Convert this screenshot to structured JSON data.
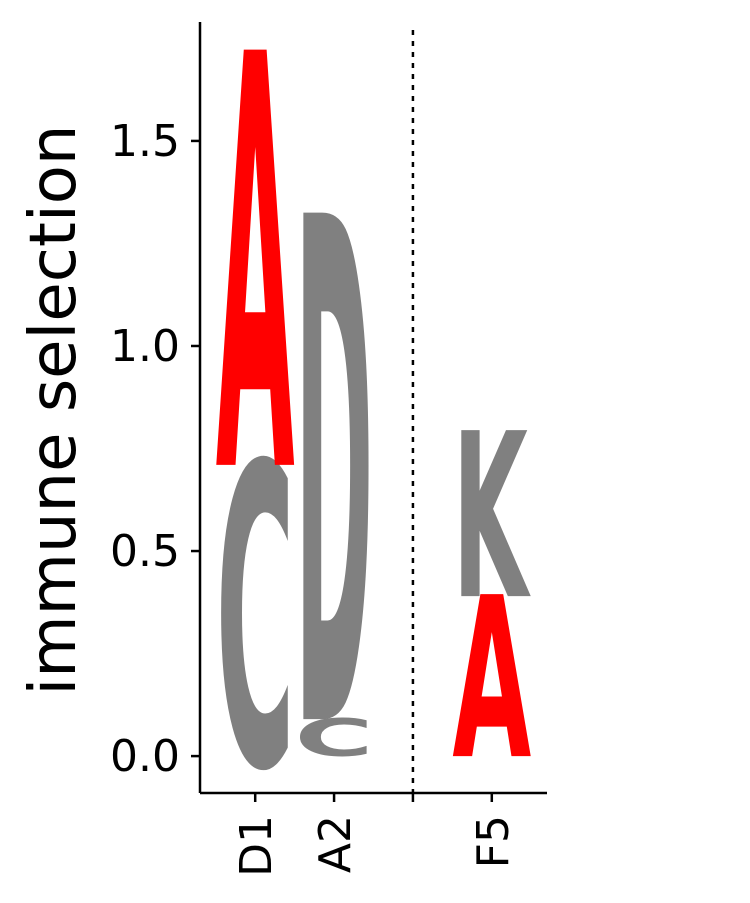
{
  "chart_data": {
    "type": "sequence-logo",
    "ylabel": "immune selection",
    "ylim": [
      -0.09,
      1.79
    ],
    "yticks": [
      {
        "value": 0.0,
        "label": "0.0"
      },
      {
        "value": 0.5,
        "label": "0.5"
      },
      {
        "value": 1.0,
        "label": "1.0"
      },
      {
        "value": 1.5,
        "label": "1.5"
      }
    ],
    "categories": [
      "D1",
      "A2",
      "F5"
    ],
    "category_positions": [
      1,
      2,
      4
    ],
    "xlim": [
      0.3,
      4.7
    ],
    "separator_at": 3,
    "stacks": [
      {
        "position": "D1",
        "letters": [
          {
            "char": "C",
            "bottom": -0.02,
            "top": 0.71,
            "color": "#808080"
          },
          {
            "char": "A",
            "bottom": 0.71,
            "top": 1.71,
            "color": "#ff0000"
          }
        ]
      },
      {
        "position": "A2",
        "letters": [
          {
            "char": "C",
            "bottom": 0.0,
            "top": 0.09,
            "color": "#808080"
          },
          {
            "char": "D",
            "bottom": 0.09,
            "top": 1.31,
            "color": "#808080"
          }
        ]
      },
      {
        "position": "F5",
        "letters": [
          {
            "char": "A",
            "bottom": 0.0,
            "top": 0.39,
            "color": "#ff0000"
          },
          {
            "char": "K",
            "bottom": 0.39,
            "top": 0.79,
            "color": "#808080"
          }
        ]
      }
    ]
  }
}
